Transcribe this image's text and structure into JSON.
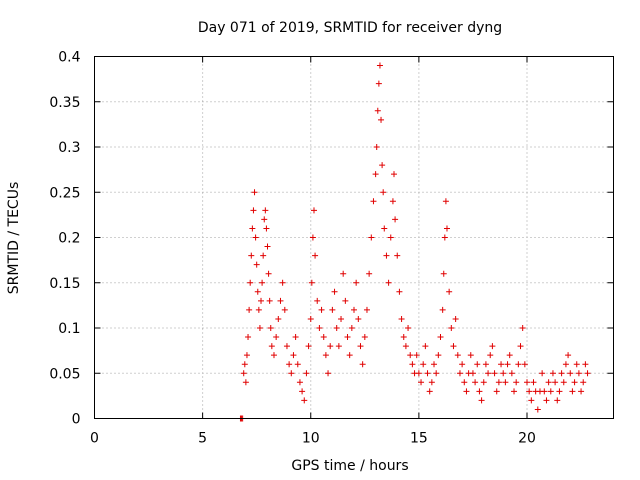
{
  "chart_data": {
    "type": "scatter",
    "title": "Day 071 of 2019, SRMTID for receiver dyng",
    "xlabel": "GPS time / hours",
    "ylabel": "SRMTID / TECUs",
    "xlim": [
      0,
      24
    ],
    "ylim": [
      0,
      0.4
    ],
    "xticks": [
      0,
      5,
      10,
      15,
      20
    ],
    "yticks": [
      0,
      0.05,
      0.1,
      0.15,
      0.2,
      0.25,
      0.3,
      0.35,
      0.4
    ],
    "xtick_labels": [
      "0",
      "5",
      "10",
      "15",
      "20"
    ],
    "ytick_labels": [
      "0",
      "0.05",
      "0.1",
      "0.15",
      "0.2",
      "0.25",
      "0.3",
      "0.35",
      "0.4"
    ],
    "grid": true,
    "marker": "plus",
    "color": "#e00000",
    "series": [
      {
        "name": "SRMTID",
        "points": [
          [
            6.75,
            0.0
          ],
          [
            6.8,
            0.0
          ],
          [
            6.85,
            0.0
          ],
          [
            6.9,
            0.05
          ],
          [
            6.95,
            0.06
          ],
          [
            7.0,
            0.04
          ],
          [
            7.05,
            0.07
          ],
          [
            7.1,
            0.09
          ],
          [
            7.15,
            0.12
          ],
          [
            7.2,
            0.15
          ],
          [
            7.25,
            0.18
          ],
          [
            7.3,
            0.21
          ],
          [
            7.35,
            0.23
          ],
          [
            7.4,
            0.25
          ],
          [
            7.45,
            0.2
          ],
          [
            7.5,
            0.17
          ],
          [
            7.55,
            0.14
          ],
          [
            7.6,
            0.12
          ],
          [
            7.65,
            0.1
          ],
          [
            7.7,
            0.13
          ],
          [
            7.75,
            0.15
          ],
          [
            7.8,
            0.18
          ],
          [
            7.85,
            0.22
          ],
          [
            7.9,
            0.23
          ],
          [
            7.95,
            0.21
          ],
          [
            8.0,
            0.19
          ],
          [
            8.05,
            0.16
          ],
          [
            8.1,
            0.13
          ],
          [
            8.15,
            0.1
          ],
          [
            8.2,
            0.08
          ],
          [
            8.3,
            0.07
          ],
          [
            8.4,
            0.09
          ],
          [
            8.5,
            0.11
          ],
          [
            8.6,
            0.13
          ],
          [
            8.7,
            0.15
          ],
          [
            8.8,
            0.12
          ],
          [
            8.9,
            0.08
          ],
          [
            9.0,
            0.06
          ],
          [
            9.1,
            0.05
          ],
          [
            9.2,
            0.07
          ],
          [
            9.3,
            0.09
          ],
          [
            9.4,
            0.06
          ],
          [
            9.5,
            0.04
          ],
          [
            9.6,
            0.03
          ],
          [
            9.7,
            0.02
          ],
          [
            9.8,
            0.05
          ],
          [
            9.9,
            0.08
          ],
          [
            10.0,
            0.11
          ],
          [
            10.05,
            0.15
          ],
          [
            10.1,
            0.2
          ],
          [
            10.15,
            0.23
          ],
          [
            10.2,
            0.18
          ],
          [
            10.3,
            0.13
          ],
          [
            10.4,
            0.1
          ],
          [
            10.5,
            0.12
          ],
          [
            10.6,
            0.09
          ],
          [
            10.7,
            0.07
          ],
          [
            10.8,
            0.05
          ],
          [
            10.9,
            0.08
          ],
          [
            11.0,
            0.12
          ],
          [
            11.1,
            0.14
          ],
          [
            11.2,
            0.1
          ],
          [
            11.3,
            0.08
          ],
          [
            11.4,
            0.11
          ],
          [
            11.5,
            0.16
          ],
          [
            11.6,
            0.13
          ],
          [
            11.7,
            0.09
          ],
          [
            11.8,
            0.07
          ],
          [
            11.9,
            0.1
          ],
          [
            12.0,
            0.12
          ],
          [
            12.1,
            0.15
          ],
          [
            12.2,
            0.11
          ],
          [
            12.3,
            0.08
          ],
          [
            12.4,
            0.06
          ],
          [
            12.5,
            0.09
          ],
          [
            12.6,
            0.12
          ],
          [
            12.7,
            0.16
          ],
          [
            12.8,
            0.2
          ],
          [
            12.9,
            0.24
          ],
          [
            13.0,
            0.27
          ],
          [
            13.05,
            0.3
          ],
          [
            13.1,
            0.34
          ],
          [
            13.15,
            0.37
          ],
          [
            13.2,
            0.39
          ],
          [
            13.25,
            0.33
          ],
          [
            13.3,
            0.28
          ],
          [
            13.35,
            0.25
          ],
          [
            13.4,
            0.21
          ],
          [
            13.5,
            0.18
          ],
          [
            13.6,
            0.15
          ],
          [
            13.7,
            0.2
          ],
          [
            13.8,
            0.24
          ],
          [
            13.85,
            0.27
          ],
          [
            13.9,
            0.22
          ],
          [
            14.0,
            0.18
          ],
          [
            14.1,
            0.14
          ],
          [
            14.2,
            0.11
          ],
          [
            14.3,
            0.09
          ],
          [
            14.4,
            0.08
          ],
          [
            14.5,
            0.1
          ],
          [
            14.6,
            0.07
          ],
          [
            14.7,
            0.06
          ],
          [
            14.8,
            0.05
          ],
          [
            14.9,
            0.07
          ],
          [
            15.0,
            0.05
          ],
          [
            15.1,
            0.04
          ],
          [
            15.2,
            0.06
          ],
          [
            15.3,
            0.08
          ],
          [
            15.4,
            0.05
          ],
          [
            15.5,
            0.03
          ],
          [
            15.6,
            0.04
          ],
          [
            15.7,
            0.06
          ],
          [
            15.8,
            0.05
          ],
          [
            15.9,
            0.07
          ],
          [
            16.0,
            0.09
          ],
          [
            16.1,
            0.12
          ],
          [
            16.15,
            0.16
          ],
          [
            16.2,
            0.2
          ],
          [
            16.25,
            0.24
          ],
          [
            16.3,
            0.21
          ],
          [
            16.4,
            0.14
          ],
          [
            16.5,
            0.1
          ],
          [
            16.6,
            0.08
          ],
          [
            16.7,
            0.11
          ],
          [
            16.8,
            0.07
          ],
          [
            16.9,
            0.05
          ],
          [
            17.0,
            0.06
          ],
          [
            17.1,
            0.04
          ],
          [
            17.2,
            0.03
          ],
          [
            17.3,
            0.05
          ],
          [
            17.4,
            0.07
          ],
          [
            17.5,
            0.05
          ],
          [
            17.6,
            0.04
          ],
          [
            17.7,
            0.06
          ],
          [
            17.8,
            0.03
          ],
          [
            17.9,
            0.02
          ],
          [
            18.0,
            0.04
          ],
          [
            18.1,
            0.06
          ],
          [
            18.2,
            0.05
          ],
          [
            18.3,
            0.07
          ],
          [
            18.4,
            0.08
          ],
          [
            18.5,
            0.05
          ],
          [
            18.6,
            0.03
          ],
          [
            18.7,
            0.04
          ],
          [
            18.8,
            0.06
          ],
          [
            18.9,
            0.05
          ],
          [
            19.0,
            0.04
          ],
          [
            19.1,
            0.06
          ],
          [
            19.2,
            0.07
          ],
          [
            19.3,
            0.05
          ],
          [
            19.4,
            0.03
          ],
          [
            19.5,
            0.04
          ],
          [
            19.6,
            0.06
          ],
          [
            19.7,
            0.08
          ],
          [
            19.8,
            0.1
          ],
          [
            19.9,
            0.06
          ],
          [
            20.0,
            0.04
          ],
          [
            20.1,
            0.03
          ],
          [
            20.2,
            0.02
          ],
          [
            20.3,
            0.04
          ],
          [
            20.4,
            0.03
          ],
          [
            20.5,
            0.01
          ],
          [
            20.6,
            0.03
          ],
          [
            20.7,
            0.05
          ],
          [
            20.8,
            0.03
          ],
          [
            20.9,
            0.02
          ],
          [
            21.0,
            0.04
          ],
          [
            21.1,
            0.03
          ],
          [
            21.2,
            0.05
          ],
          [
            21.3,
            0.04
          ],
          [
            21.4,
            0.02
          ],
          [
            21.5,
            0.03
          ],
          [
            21.6,
            0.05
          ],
          [
            21.7,
            0.04
          ],
          [
            21.8,
            0.06
          ],
          [
            21.9,
            0.07
          ],
          [
            22.0,
            0.05
          ],
          [
            22.1,
            0.03
          ],
          [
            22.2,
            0.04
          ],
          [
            22.3,
            0.06
          ],
          [
            22.4,
            0.05
          ],
          [
            22.5,
            0.03
          ],
          [
            22.6,
            0.04
          ],
          [
            22.7,
            0.06
          ],
          [
            22.8,
            0.05
          ]
        ]
      }
    ]
  }
}
